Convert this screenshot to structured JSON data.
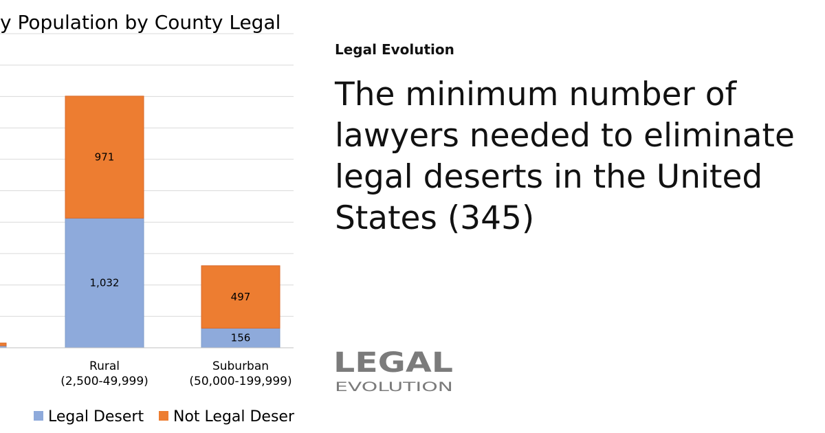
{
  "site": {
    "name": "Legal Evolution"
  },
  "headline": "The minimum number of lawyers needed to eliminate legal deserts in the United States (345)",
  "logo": {
    "word_top": "LEGAL",
    "word_bottom": "EVOLUTION"
  },
  "colors": {
    "legal_desert": "#8eaadb",
    "not_legal_desert": "#ed7d31",
    "gridline": "#d9d9d9",
    "logo": "#7b7b7b"
  },
  "chart_data": {
    "type": "bar",
    "stacked": true,
    "title": "y Population by County Legal",
    "categories": [
      {
        "label_line1": "",
        "label_line2": ""
      },
      {
        "label_line1": "Rural",
        "label_line2": "(2,500-49,999)"
      },
      {
        "label_line1": "Suburban",
        "label_line2": "(50,000-199,999)"
      }
    ],
    "series": [
      {
        "name": "Legal Desert",
        "color": "#8eaadb",
        "values": [
          16,
          1032,
          156
        ],
        "labels": [
          "",
          "1,032",
          "156"
        ]
      },
      {
        "name": "Not Legal Deser",
        "color": "#ed7d31",
        "values": [
          22,
          971,
          497
        ],
        "labels": [
          "",
          "971",
          "497"
        ]
      }
    ],
    "ylim": [
      0,
      2500
    ],
    "grid": true,
    "legend": "bottom"
  }
}
